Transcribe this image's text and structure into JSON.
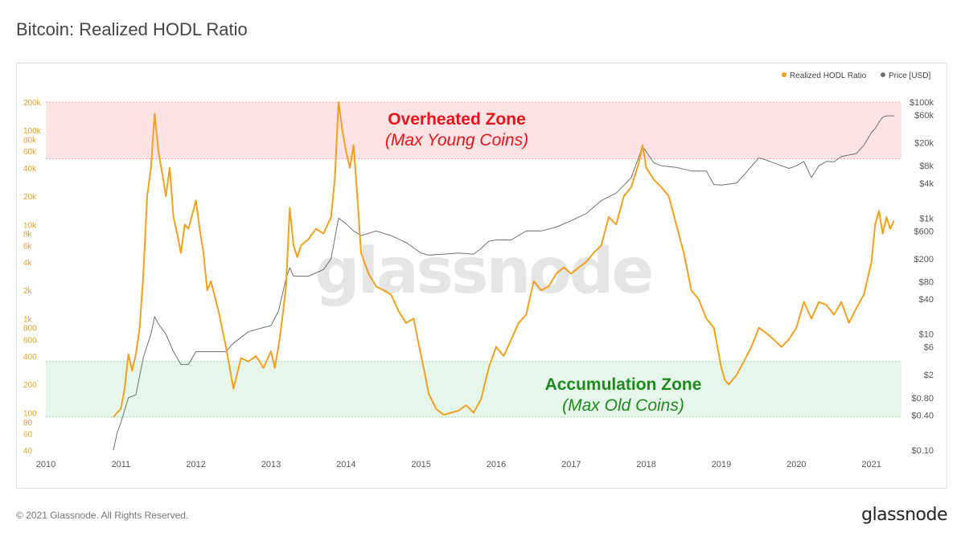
{
  "page": {
    "title": "Bitcoin: Realized HODL Ratio",
    "footer": "© 2021 Glassnode. All Rights Reserved.",
    "brand": "glassnode"
  },
  "chart_data": {
    "type": "line",
    "title": "Bitcoin: Realized HODL Ratio",
    "watermark": "glassnode",
    "legend": [
      "Realized HODL Ratio",
      "Price [USD]"
    ],
    "legend_position": "top-right",
    "colors": {
      "rhodl": "#f2a01f",
      "price": "#6f6f6f",
      "overheated_fill": "#fde3e3",
      "overheated_text": "#e8141c",
      "accum_fill": "#e6f6ea",
      "accum_text": "#1e8a1e",
      "zone_border_red": "#f0a0a0",
      "zone_border_green": "#9ad8a6"
    },
    "x_ticks": [
      "2010",
      "2011",
      "2012",
      "2013",
      "2014",
      "2015",
      "2016",
      "2017",
      "2018",
      "2019",
      "2020",
      "2021"
    ],
    "y_left": {
      "scale": "log",
      "range": [
        40,
        200000
      ],
      "ticks": [
        {
          "v": 200000,
          "label": "200k"
        },
        {
          "v": 100000,
          "label": "100k"
        },
        {
          "v": 80000,
          "label": "80k"
        },
        {
          "v": 60000,
          "label": "60k"
        },
        {
          "v": 40000,
          "label": "40k"
        },
        {
          "v": 20000,
          "label": "20k"
        },
        {
          "v": 10000,
          "label": "10k"
        },
        {
          "v": 8000,
          "label": "8k"
        },
        {
          "v": 6000,
          "label": "6k"
        },
        {
          "v": 4000,
          "label": "4k"
        },
        {
          "v": 2000,
          "label": "2k"
        },
        {
          "v": 1000,
          "label": "1k"
        },
        {
          "v": 800,
          "label": "800"
        },
        {
          "v": 600,
          "label": "600"
        },
        {
          "v": 400,
          "label": "400"
        },
        {
          "v": 200,
          "label": "200"
        },
        {
          "v": 100,
          "label": "100"
        },
        {
          "v": 80,
          "label": "80"
        },
        {
          "v": 60,
          "label": "60"
        },
        {
          "v": 40,
          "label": "40"
        }
      ]
    },
    "y_right": {
      "scale": "log",
      "range": [
        0.1,
        100000
      ],
      "ticks": [
        {
          "v": 100000,
          "label": "$100k"
        },
        {
          "v": 60000,
          "label": "$60k"
        },
        {
          "v": 20000,
          "label": "$20k"
        },
        {
          "v": 8000,
          "label": "$8k"
        },
        {
          "v": 4000,
          "label": "$4k"
        },
        {
          "v": 1000,
          "label": "$1k"
        },
        {
          "v": 600,
          "label": "$600"
        },
        {
          "v": 200,
          "label": "$200"
        },
        {
          "v": 80,
          "label": "$80"
        },
        {
          "v": 40,
          "label": "$40"
        },
        {
          "v": 10,
          "label": "$10"
        },
        {
          "v": 6,
          "label": "$6"
        },
        {
          "v": 2,
          "label": "$2"
        },
        {
          "v": 0.8,
          "label": "$0.80"
        },
        {
          "v": 0.4,
          "label": "$0.40"
        },
        {
          "v": 0.1,
          "label": "$0.10"
        }
      ]
    },
    "zones": [
      {
        "name": "Overheated Zone",
        "subtitle": "(Max Young Coins)",
        "from": 50000,
        "to": 200000,
        "kind": "overheated"
      },
      {
        "name": "Accumulation Zone",
        "subtitle": "(Max Old Coins)",
        "from": 90,
        "to": 350,
        "kind": "accum"
      }
    ],
    "rhodl_series": [
      [
        2010.9,
        90
      ],
      [
        2010.95,
        100
      ],
      [
        2011.0,
        110
      ],
      [
        2011.05,
        180
      ],
      [
        2011.1,
        420
      ],
      [
        2011.15,
        280
      ],
      [
        2011.2,
        420
      ],
      [
        2011.25,
        800
      ],
      [
        2011.3,
        3000
      ],
      [
        2011.35,
        20000
      ],
      [
        2011.4,
        40000
      ],
      [
        2011.45,
        150000
      ],
      [
        2011.5,
        60000
      ],
      [
        2011.55,
        35000
      ],
      [
        2011.6,
        20000
      ],
      [
        2011.65,
        40000
      ],
      [
        2011.7,
        12000
      ],
      [
        2011.75,
        8000
      ],
      [
        2011.8,
        5000
      ],
      [
        2011.85,
        10000
      ],
      [
        2011.9,
        9000
      ],
      [
        2012.0,
        18000
      ],
      [
        2012.05,
        9000
      ],
      [
        2012.1,
        5000
      ],
      [
        2012.15,
        2000
      ],
      [
        2012.2,
        2500
      ],
      [
        2012.3,
        1200
      ],
      [
        2012.4,
        500
      ],
      [
        2012.5,
        180
      ],
      [
        2012.55,
        260
      ],
      [
        2012.6,
        380
      ],
      [
        2012.7,
        350
      ],
      [
        2012.8,
        400
      ],
      [
        2012.9,
        300
      ],
      [
        2013.0,
        450
      ],
      [
        2013.05,
        300
      ],
      [
        2013.1,
        500
      ],
      [
        2013.15,
        1000
      ],
      [
        2013.2,
        2200
      ],
      [
        2013.25,
        15000
      ],
      [
        2013.3,
        6000
      ],
      [
        2013.35,
        4500
      ],
      [
        2013.4,
        6000
      ],
      [
        2013.5,
        7000
      ],
      [
        2013.6,
        9000
      ],
      [
        2013.7,
        8000
      ],
      [
        2013.8,
        12000
      ],
      [
        2013.85,
        30000
      ],
      [
        2013.9,
        200000
      ],
      [
        2013.95,
        100000
      ],
      [
        2014.0,
        60000
      ],
      [
        2014.05,
        40000
      ],
      [
        2014.1,
        70000
      ],
      [
        2014.15,
        20000
      ],
      [
        2014.2,
        5000
      ],
      [
        2014.3,
        3000
      ],
      [
        2014.4,
        2200
      ],
      [
        2014.5,
        2000
      ],
      [
        2014.6,
        1800
      ],
      [
        2014.7,
        1200
      ],
      [
        2014.8,
        900
      ],
      [
        2014.9,
        1000
      ],
      [
        2015.0,
        400
      ],
      [
        2015.05,
        260
      ],
      [
        2015.1,
        160
      ],
      [
        2015.2,
        110
      ],
      [
        2015.3,
        95
      ],
      [
        2015.4,
        100
      ],
      [
        2015.5,
        105
      ],
      [
        2015.6,
        120
      ],
      [
        2015.7,
        100
      ],
      [
        2015.8,
        140
      ],
      [
        2015.9,
        300
      ],
      [
        2016.0,
        500
      ],
      [
        2016.1,
        400
      ],
      [
        2016.2,
        600
      ],
      [
        2016.3,
        900
      ],
      [
        2016.4,
        1100
      ],
      [
        2016.5,
        2500
      ],
      [
        2016.6,
        2000
      ],
      [
        2016.7,
        2200
      ],
      [
        2016.8,
        3000
      ],
      [
        2016.9,
        3500
      ],
      [
        2017.0,
        3000
      ],
      [
        2017.1,
        3500
      ],
      [
        2017.2,
        4000
      ],
      [
        2017.3,
        5000
      ],
      [
        2017.4,
        6000
      ],
      [
        2017.5,
        12000
      ],
      [
        2017.6,
        10000
      ],
      [
        2017.7,
        20000
      ],
      [
        2017.8,
        25000
      ],
      [
        2017.9,
        45000
      ],
      [
        2017.95,
        70000
      ],
      [
        2018.0,
        40000
      ],
      [
        2018.1,
        30000
      ],
      [
        2018.2,
        25000
      ],
      [
        2018.3,
        20000
      ],
      [
        2018.4,
        10000
      ],
      [
        2018.5,
        5000
      ],
      [
        2018.6,
        2000
      ],
      [
        2018.7,
        1600
      ],
      [
        2018.8,
        1000
      ],
      [
        2018.9,
        800
      ],
      [
        2019.0,
        300
      ],
      [
        2019.05,
        220
      ],
      [
        2019.1,
        200
      ],
      [
        2019.2,
        250
      ],
      [
        2019.3,
        350
      ],
      [
        2019.4,
        500
      ],
      [
        2019.5,
        800
      ],
      [
        2019.6,
        700
      ],
      [
        2019.7,
        600
      ],
      [
        2019.8,
        500
      ],
      [
        2019.9,
        600
      ],
      [
        2020.0,
        800
      ],
      [
        2020.1,
        1500
      ],
      [
        2020.2,
        1000
      ],
      [
        2020.3,
        1500
      ],
      [
        2020.4,
        1400
      ],
      [
        2020.5,
        1100
      ],
      [
        2020.6,
        1500
      ],
      [
        2020.7,
        900
      ],
      [
        2020.8,
        1300
      ],
      [
        2020.9,
        1800
      ],
      [
        2021.0,
        4000
      ],
      [
        2021.05,
        10000
      ],
      [
        2021.1,
        14000
      ],
      [
        2021.15,
        8000
      ],
      [
        2021.2,
        12000
      ],
      [
        2021.25,
        9000
      ],
      [
        2021.3,
        11000
      ]
    ],
    "price_series": [
      [
        2010.9,
        0.1
      ],
      [
        2010.95,
        0.2
      ],
      [
        2011.0,
        0.3
      ],
      [
        2011.1,
        0.8
      ],
      [
        2011.2,
        0.9
      ],
      [
        2011.3,
        4
      ],
      [
        2011.4,
        10
      ],
      [
        2011.45,
        20
      ],
      [
        2011.5,
        15
      ],
      [
        2011.6,
        10
      ],
      [
        2011.7,
        5
      ],
      [
        2011.8,
        3
      ],
      [
        2011.9,
        3
      ],
      [
        2012.0,
        5
      ],
      [
        2012.2,
        5
      ],
      [
        2012.4,
        5
      ],
      [
        2012.5,
        7
      ],
      [
        2012.7,
        11
      ],
      [
        2012.9,
        13
      ],
      [
        2013.0,
        14
      ],
      [
        2013.1,
        25
      ],
      [
        2013.2,
        90
      ],
      [
        2013.25,
        140
      ],
      [
        2013.3,
        100
      ],
      [
        2013.5,
        100
      ],
      [
        2013.7,
        130
      ],
      [
        2013.8,
        200
      ],
      [
        2013.9,
        1000
      ],
      [
        2014.0,
        800
      ],
      [
        2014.1,
        600
      ],
      [
        2014.2,
        500
      ],
      [
        2014.4,
        600
      ],
      [
        2014.6,
        500
      ],
      [
        2014.8,
        380
      ],
      [
        2015.0,
        250
      ],
      [
        2015.1,
        230
      ],
      [
        2015.3,
        240
      ],
      [
        2015.5,
        250
      ],
      [
        2015.7,
        240
      ],
      [
        2015.8,
        300
      ],
      [
        2015.9,
        400
      ],
      [
        2016.0,
        420
      ],
      [
        2016.2,
        420
      ],
      [
        2016.4,
        600
      ],
      [
        2016.6,
        600
      ],
      [
        2016.8,
        700
      ],
      [
        2017.0,
        900
      ],
      [
        2017.2,
        1200
      ],
      [
        2017.4,
        2000
      ],
      [
        2017.6,
        2700
      ],
      [
        2017.8,
        5000
      ],
      [
        2017.95,
        17000
      ],
      [
        2018.0,
        14000
      ],
      [
        2018.1,
        9000
      ],
      [
        2018.2,
        8000
      ],
      [
        2018.4,
        7500
      ],
      [
        2018.6,
        6500
      ],
      [
        2018.8,
        6500
      ],
      [
        2018.9,
        3800
      ],
      [
        2019.0,
        3700
      ],
      [
        2019.2,
        4000
      ],
      [
        2019.3,
        5500
      ],
      [
        2019.5,
        11000
      ],
      [
        2019.6,
        10000
      ],
      [
        2019.8,
        8000
      ],
      [
        2019.9,
        7200
      ],
      [
        2020.0,
        8000
      ],
      [
        2020.1,
        9500
      ],
      [
        2020.2,
        5000
      ],
      [
        2020.3,
        8000
      ],
      [
        2020.4,
        9500
      ],
      [
        2020.5,
        9300
      ],
      [
        2020.6,
        11500
      ],
      [
        2020.8,
        13000
      ],
      [
        2020.9,
        18000
      ],
      [
        2021.0,
        30000
      ],
      [
        2021.05,
        35000
      ],
      [
        2021.1,
        45000
      ],
      [
        2021.15,
        55000
      ],
      [
        2021.2,
        58000
      ],
      [
        2021.3,
        58000
      ]
    ]
  }
}
